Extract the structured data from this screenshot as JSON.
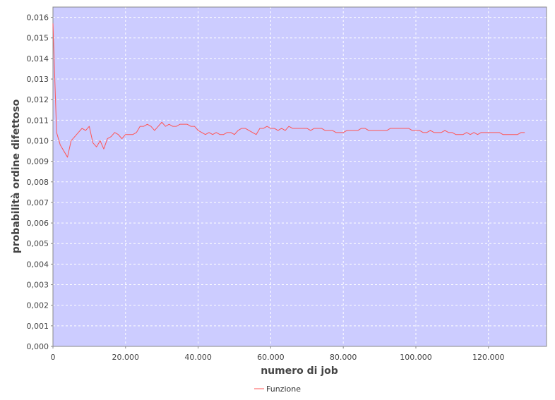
{
  "chart_data": {
    "type": "line",
    "xlabel": "numero di job",
    "ylabel": "probabilità ordine difettoso",
    "xlim": [
      0,
      136000
    ],
    "ylim": [
      0,
      0.0165
    ],
    "x_ticks": [
      {
        "value": 0,
        "label": "0"
      },
      {
        "value": 20000,
        "label": "20.000"
      },
      {
        "value": 40000,
        "label": "40.000"
      },
      {
        "value": 60000,
        "label": "60.000"
      },
      {
        "value": 80000,
        "label": "80.000"
      },
      {
        "value": 100000,
        "label": "100.000"
      },
      {
        "value": 120000,
        "label": "120.000"
      }
    ],
    "y_ticks": [
      {
        "value": 0.0,
        "label": "0,000"
      },
      {
        "value": 0.001,
        "label": "0,001"
      },
      {
        "value": 0.002,
        "label": "0,002"
      },
      {
        "value": 0.003,
        "label": "0,003"
      },
      {
        "value": 0.004,
        "label": "0,004"
      },
      {
        "value": 0.005,
        "label": "0,005"
      },
      {
        "value": 0.006,
        "label": "0,006"
      },
      {
        "value": 0.007,
        "label": "0,007"
      },
      {
        "value": 0.008,
        "label": "0,008"
      },
      {
        "value": 0.009,
        "label": "0,009"
      },
      {
        "value": 0.01,
        "label": "0,010"
      },
      {
        "value": 0.011,
        "label": "0,011"
      },
      {
        "value": 0.012,
        "label": "0,012"
      },
      {
        "value": 0.013,
        "label": "0,013"
      },
      {
        "value": 0.014,
        "label": "0,014"
      },
      {
        "value": 0.015,
        "label": "0,015"
      },
      {
        "value": 0.016,
        "label": "0,016"
      }
    ],
    "grid": true,
    "legend_position": "bottom-center",
    "colors": {
      "plot_background": "#ccccff",
      "line": "#ff5555",
      "grid": "#ffffff",
      "axis": "#888888"
    },
    "series": [
      {
        "name": "Funzione",
        "x": [
          0,
          1000,
          2000,
          3000,
          4000,
          5000,
          6000,
          7000,
          8000,
          9000,
          10000,
          11000,
          12000,
          13000,
          14000,
          15000,
          16000,
          17000,
          18000,
          19000,
          20000,
          21000,
          22000,
          23000,
          24000,
          25000,
          26000,
          27000,
          28000,
          29000,
          30000,
          31000,
          32000,
          33000,
          34000,
          35000,
          36000,
          37000,
          38000,
          39000,
          40000,
          41000,
          42000,
          43000,
          44000,
          45000,
          46000,
          47000,
          48000,
          49000,
          50000,
          51000,
          52000,
          53000,
          54000,
          55000,
          56000,
          57000,
          58000,
          59000,
          60000,
          61000,
          62000,
          63000,
          64000,
          65000,
          66000,
          67000,
          68000,
          69000,
          70000,
          71000,
          72000,
          73000,
          74000,
          75000,
          76000,
          77000,
          78000,
          79000,
          80000,
          81000,
          82000,
          83000,
          84000,
          85000,
          86000,
          87000,
          88000,
          89000,
          90000,
          91000,
          92000,
          93000,
          94000,
          95000,
          96000,
          97000,
          98000,
          99000,
          100000,
          101000,
          102000,
          103000,
          104000,
          105000,
          106000,
          107000,
          108000,
          109000,
          110000,
          111000,
          112000,
          113000,
          114000,
          115000,
          116000,
          117000,
          118000,
          119000,
          120000,
          121000,
          122000,
          123000,
          124000,
          125000,
          126000,
          127000,
          128000,
          129000,
          130000
        ],
        "y": [
          0.0157,
          0.0104,
          0.0098,
          0.0095,
          0.0092,
          0.01,
          0.0102,
          0.0104,
          0.0106,
          0.0105,
          0.0107,
          0.0099,
          0.0097,
          0.01,
          0.0096,
          0.0101,
          0.0102,
          0.0104,
          0.0103,
          0.0101,
          0.0103,
          0.0103,
          0.0103,
          0.0104,
          0.0107,
          0.0107,
          0.0108,
          0.0107,
          0.0105,
          0.0107,
          0.0109,
          0.0107,
          0.0108,
          0.0107,
          0.0107,
          0.0108,
          0.0108,
          0.0108,
          0.0107,
          0.0107,
          0.0105,
          0.0104,
          0.0103,
          0.0104,
          0.0103,
          0.0104,
          0.0103,
          0.0103,
          0.0104,
          0.0104,
          0.0103,
          0.0105,
          0.0106,
          0.0106,
          0.0105,
          0.0104,
          0.0103,
          0.0106,
          0.0106,
          0.0107,
          0.0106,
          0.0106,
          0.0105,
          0.0106,
          0.0105,
          0.0107,
          0.0106,
          0.0106,
          0.0106,
          0.0106,
          0.0106,
          0.0105,
          0.0106,
          0.0106,
          0.0106,
          0.0105,
          0.0105,
          0.0105,
          0.0104,
          0.0104,
          0.0104,
          0.0105,
          0.0105,
          0.0105,
          0.0105,
          0.0106,
          0.0106,
          0.0105,
          0.0105,
          0.0105,
          0.0105,
          0.0105,
          0.0105,
          0.0106,
          0.0106,
          0.0106,
          0.0106,
          0.0106,
          0.0106,
          0.0105,
          0.0105,
          0.0105,
          0.0104,
          0.0104,
          0.0105,
          0.0104,
          0.0104,
          0.0104,
          0.0105,
          0.0104,
          0.0104,
          0.0103,
          0.0103,
          0.0103,
          0.0104,
          0.0103,
          0.0104,
          0.0103,
          0.0104,
          0.0104,
          0.0104,
          0.0104,
          0.0104,
          0.0104,
          0.0103,
          0.0103,
          0.0103,
          0.0103,
          0.0103,
          0.0104,
          0.0104
        ]
      }
    ]
  }
}
